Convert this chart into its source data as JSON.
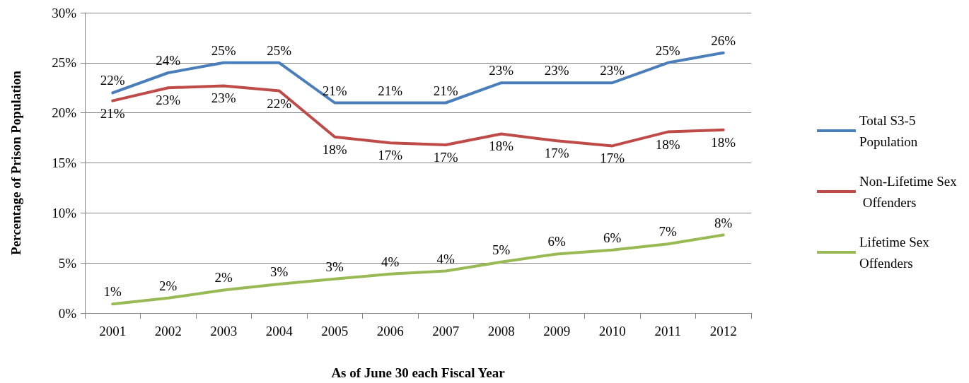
{
  "chart_data": {
    "type": "line",
    "xlabel": "As of June 30 each Fiscal Year",
    "ylabel": "Percentage of Prison Population",
    "categories": [
      "2001",
      "2002",
      "2003",
      "2004",
      "2005",
      "2006",
      "2007",
      "2008",
      "2009",
      "2010",
      "2011",
      "2012"
    ],
    "ylim": [
      0,
      30
    ],
    "yticks": [
      {
        "value": 0,
        "label": "0%"
      },
      {
        "value": 5,
        "label": "5%"
      },
      {
        "value": 10,
        "label": "10%"
      },
      {
        "value": 15,
        "label": "15%"
      },
      {
        "value": 20,
        "label": "20%"
      },
      {
        "value": 25,
        "label": "25%"
      },
      {
        "value": 30,
        "label": "30%"
      }
    ],
    "grid": "y",
    "legend": "right",
    "marker": "none",
    "line_style": "solid",
    "series": [
      {
        "name": "Total S3-5 Population",
        "color": "#4a7ebb",
        "values": [
          22,
          24,
          25,
          25,
          21,
          21,
          21,
          23,
          23,
          23,
          25,
          26
        ],
        "value_labels": [
          "22%",
          "24%",
          "25%",
          "25%",
          "21%",
          "21%",
          "21%",
          "23%",
          "23%",
          "23%",
          "25%",
          "26%"
        ]
      },
      {
        "name": "Non-Lifetime Sex Offenders",
        "color": "#be4b48",
        "values": [
          21.2,
          22.5,
          22.7,
          22.2,
          17.6,
          17.0,
          16.8,
          17.9,
          17.2,
          16.7,
          18.1,
          18.3
        ],
        "value_labels": [
          "21%",
          "23%",
          "23%",
          "22%",
          "18%",
          "17%",
          "17%",
          "18%",
          "17%",
          "17%",
          "18%",
          "18%"
        ]
      },
      {
        "name": "Lifetime Sex Offenders",
        "color": "#98b954",
        "values": [
          0.9,
          1.5,
          2.3,
          2.9,
          3.4,
          3.9,
          4.2,
          5.1,
          5.9,
          6.3,
          6.9,
          7.8
        ],
        "value_labels": [
          "1%",
          "2%",
          "2%",
          "3%",
          "3%",
          "4%",
          "4%",
          "5%",
          "6%",
          "6%",
          "7%",
          "8%"
        ]
      }
    ]
  }
}
